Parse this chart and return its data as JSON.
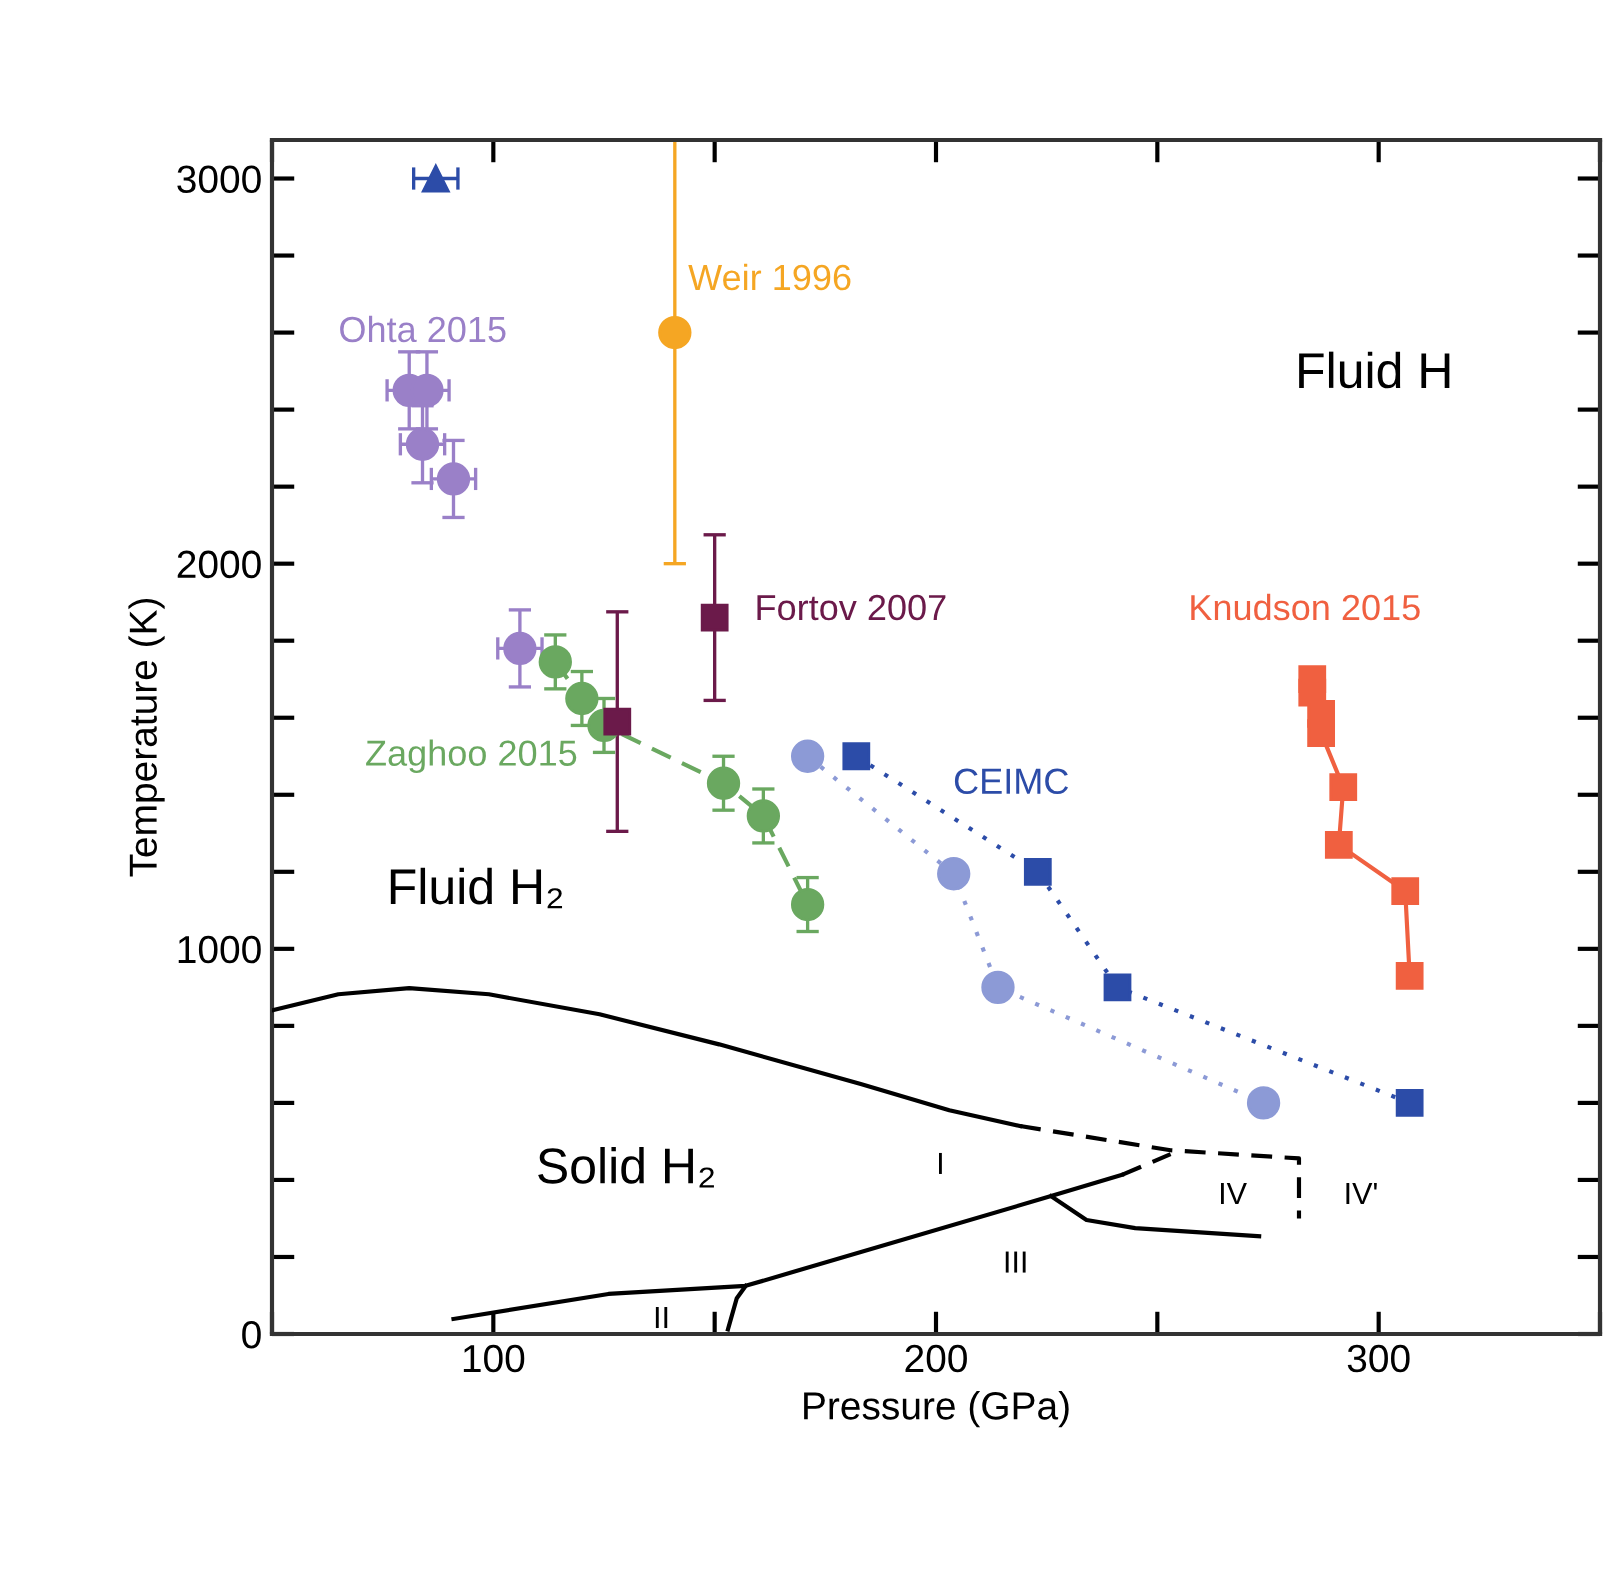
{
  "chart_data": {
    "type": "scatter",
    "xlabel": "Pressure (GPa)",
    "ylabel": "Temperature (K)",
    "xlim": [
      50,
      350
    ],
    "ylim": [
      0,
      3100
    ],
    "xticks": [
      {
        "value": 50,
        "label": null
      },
      100,
      {
        "value": 150,
        "label": null
      },
      200,
      {
        "value": 250,
        "label": null
      },
      300,
      {
        "value": 350,
        "label": null
      }
    ],
    "yticks": [
      0,
      {
        "value": 200,
        "label": null
      },
      {
        "value": 400,
        "label": null
      },
      {
        "value": 600,
        "label": null
      },
      {
        "value": 800,
        "label": null
      },
      1000,
      {
        "value": 1200,
        "label": null
      },
      {
        "value": 1400,
        "label": null
      },
      {
        "value": 1600,
        "label": null
      },
      {
        "value": 1800,
        "label": null
      },
      2000,
      {
        "value": 2200,
        "label": null
      },
      {
        "value": 2400,
        "label": null
      },
      {
        "value": 2600,
        "label": null
      },
      {
        "value": 2800,
        "label": null
      },
      3000
    ],
    "grid": false,
    "series": [
      {
        "marker": "triangle",
        "color": "#2c4ca8",
        "x": [
          87
        ],
        "values": [
          3000
        ],
        "xerrors": [
          5
        ]
      },
      {
        "name": "Weir 1996",
        "marker": "circle",
        "color": "#f5a623",
        "x": [
          141
        ],
        "values": [
          2600
        ],
        "errors": [
          [
            2000,
            3100
          ]
        ]
      },
      {
        "name": "Ohta 2015",
        "marker": "circle",
        "color": "#9a80c8",
        "x": [
          81,
          85,
          84,
          91,
          106
        ],
        "values": [
          2450,
          2450,
          2310,
          2220,
          1780
        ],
        "errors": [
          100,
          100,
          100,
          100,
          100
        ],
        "xerrors": [
          5,
          5,
          5,
          5,
          5
        ]
      },
      {
        "name": "Fortov 2007",
        "marker": "square",
        "color": "#6b1a4a",
        "x": [
          150,
          128
        ],
        "values": [
          1860,
          1590
        ],
        "errors": [
          215,
          285
        ]
      },
      {
        "type": "line",
        "name": "Zaghoo 2015",
        "marker": "circle",
        "line_style": "dashed",
        "color": "#6aa860",
        "x": [
          114,
          120,
          125,
          152,
          161,
          171
        ],
        "values": [
          1745,
          1650,
          1580,
          1430,
          1345,
          1115
        ],
        "errors": [
          70,
          70,
          70,
          70,
          70,
          70
        ]
      },
      {
        "type": "line",
        "marker": "circle",
        "line_style": "dotted",
        "color": "#8c9ad6",
        "x": [
          171,
          204,
          214,
          274
        ],
        "values": [
          1500,
          1195,
          900,
          600
        ]
      },
      {
        "type": "line",
        "name": "CEIMC",
        "marker": "square",
        "line_style": "dotted",
        "color": "#2c4ca8",
        "x": [
          182,
          223,
          241,
          307
        ],
        "values": [
          1500,
          1200,
          900,
          600
        ]
      },
      {
        "type": "line",
        "name": "Knudson 2015",
        "marker": "square",
        "line_style": "solid",
        "color": "#f06040",
        "x": [
          285,
          285,
          287,
          287,
          292,
          291,
          306,
          307
        ],
        "values": [
          1700,
          1665,
          1610,
          1560,
          1420,
          1270,
          1150,
          930
        ]
      },
      {
        "type": "line",
        "marker": "none",
        "line_style": "solid",
        "color": "#000000",
        "x": [
          50,
          65,
          81,
          99,
          124,
          151,
          183,
          203,
          219
        ],
        "values": [
          840,
          882,
          898,
          882,
          830,
          752,
          649,
          581,
          540
        ]
      },
      {
        "type": "line",
        "marker": "none",
        "line_style": "dashed",
        "color": "#000000",
        "x": [
          219,
          253,
          282,
          282
        ],
        "values": [
          540,
          477,
          456,
          300
        ]
      },
      {
        "type": "line",
        "marker": "none",
        "line_style": "solid",
        "color": "#000000",
        "x": [
          91,
          126,
          157,
          226,
          242
        ],
        "values": [
          39,
          104,
          125,
          358,
          413
        ]
      },
      {
        "type": "line",
        "marker": "none",
        "line_style": "dashed",
        "color": "#000000",
        "x": [
          242,
          253
        ],
        "values": [
          413,
          467
        ]
      },
      {
        "type": "line",
        "marker": "none",
        "line_style": "solid",
        "color": "#000000",
        "x": [
          153,
          155,
          157
        ],
        "values": [
          12,
          93,
          125
        ]
      },
      {
        "type": "line",
        "marker": "none",
        "line_style": "solid",
        "color": "#000000",
        "x": [
          226,
          234,
          245,
          273
        ],
        "values": [
          358,
          296,
          275,
          254
        ]
      }
    ],
    "annotations": [
      "Fluid H",
      "Fluid H₂",
      "Solid H₂",
      "I",
      "II",
      "III",
      "IV",
      "IV'"
    ]
  }
}
